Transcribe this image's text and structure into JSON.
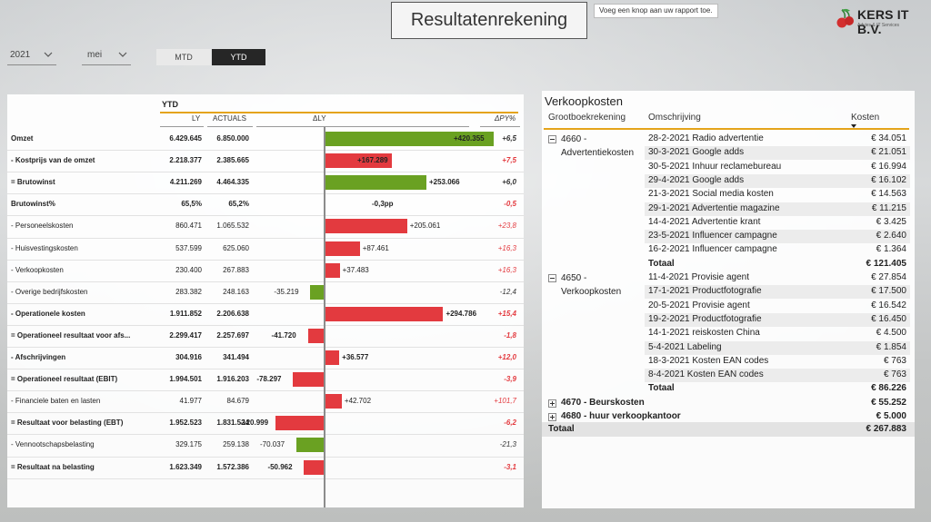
{
  "report": {
    "title": "Resultatenrekening",
    "tooltip": "Voeg een knop aan uw rapport toe.",
    "logo": {
      "name": "KERS IT B.V.",
      "tagline": "Advies & IT Services"
    }
  },
  "filters": {
    "year": "2021",
    "month": "mei",
    "period_toggle": {
      "options": [
        "MTD",
        "YTD"
      ],
      "selected": "YTD"
    }
  },
  "colors": {
    "accent": "#e4a41b",
    "positive": "#6aa122",
    "negative": "#e33a3f",
    "selected_toggle": "#262626"
  },
  "income_statement": {
    "section_title": "YTD",
    "columns": {
      "ly": "LY",
      "actuals": "ACTUALS",
      "delta_ly": "ΔLY",
      "delta_py_pct": "ΔPY%"
    },
    "rows": [
      {
        "label": "Omzet",
        "ly": "6.429.645",
        "actuals": "6.850.000",
        "delta_label": "+420.355",
        "delta": 420355,
        "py": "+6,5",
        "bold": true,
        "good": true
      },
      {
        "label": "- Kostprijs van de omzet",
        "ly": "2.218.377",
        "actuals": "2.385.665",
        "delta_label": "+167.289",
        "delta": 167289,
        "py": "+7,5",
        "bold": true,
        "good": false
      },
      {
        "label": "= Brutowinst",
        "ly": "4.211.269",
        "actuals": "4.464.335",
        "delta_label": "+253.066",
        "delta": 253066,
        "py": "+6,0",
        "bold": true,
        "good": true
      },
      {
        "label": "Brutowinst%",
        "ly": "65,5%",
        "actuals": "65,2%",
        "delta_label": "-0,3pp",
        "delta": 0,
        "py": "-0,5",
        "bold": true,
        "good": false
      },
      {
        "label": "- Personeelskosten",
        "ly": "860.471",
        "actuals": "1.065.532",
        "delta_label": "+205.061",
        "delta": 205061,
        "py": "+23,8",
        "bold": false,
        "good": false
      },
      {
        "label": "- Huisvestingskosten",
        "ly": "537.599",
        "actuals": "625.060",
        "delta_label": "+87.461",
        "delta": 87461,
        "py": "+16,3",
        "bold": false,
        "good": false
      },
      {
        "label": "- Verkoopkosten",
        "ly": "230.400",
        "actuals": "267.883",
        "delta_label": "+37.483",
        "delta": 37483,
        "py": "+16,3",
        "bold": false,
        "good": false
      },
      {
        "label": "- Overige bedrijfskosten",
        "ly": "283.382",
        "actuals": "248.163",
        "delta_label": "-35.219",
        "delta": -35219,
        "py": "-12,4",
        "bold": false,
        "good": true
      },
      {
        "label": "- Operationele kosten",
        "ly": "1.911.852",
        "actuals": "2.206.638",
        "delta_label": "+294.786",
        "delta": 294786,
        "py": "+15,4",
        "bold": true,
        "good": false
      },
      {
        "label": "= Operationeel resultaat voor afs...",
        "ly": "2.299.417",
        "actuals": "2.257.697",
        "delta_label": "-41.720",
        "delta": -41720,
        "py": "-1,8",
        "bold": true,
        "good": false
      },
      {
        "label": "- Afschrijvingen",
        "ly": "304.916",
        "actuals": "341.494",
        "delta_label": "+36.577",
        "delta": 36577,
        "py": "+12,0",
        "bold": true,
        "good": false
      },
      {
        "label": "= Operationeel resultaat (EBIT)",
        "ly": "1.994.501",
        "actuals": "1.916.203",
        "delta_label": "-78.297",
        "delta": -78297,
        "py": "-3,9",
        "bold": true,
        "good": false
      },
      {
        "label": "- Financiele baten en lasten",
        "ly": "41.977",
        "actuals": "84.679",
        "delta_label": "+42.702",
        "delta": 42702,
        "py": "+101,7",
        "bold": false,
        "good": false
      },
      {
        "label": "= Resultaat voor belasting (EBT)",
        "ly": "1.952.523",
        "actuals": "1.831.524",
        "delta_label": "-120.999",
        "delta": -120999,
        "py": "-6,2",
        "bold": true,
        "good": false
      },
      {
        "label": "- Vennootschapsbelasting",
        "ly": "329.175",
        "actuals": "259.138",
        "delta_label": "-70.037",
        "delta": -70037,
        "py": "-21,3",
        "bold": false,
        "good": true
      },
      {
        "label": "= Resultaat na belasting",
        "ly": "1.623.349",
        "actuals": "1.572.386",
        "delta_label": "-50.962",
        "delta": -50962,
        "py": "-3,1",
        "bold": true,
        "good": false
      }
    ]
  },
  "sales_costs": {
    "title": "Verkoopkosten",
    "columns": {
      "account": "Grootboekrekening",
      "description": "Omschrijving",
      "costs": "Kosten"
    },
    "groups": [
      {
        "name_line1": "4660 -",
        "name_line2": "Advertentiekosten",
        "expanded": true,
        "items": [
          {
            "desc": "28-2-2021 Radio advertentie",
            "cost": "€ 34.051"
          },
          {
            "desc": "30-3-2021 Google adds",
            "cost": "€ 21.051"
          },
          {
            "desc": "30-5-2021 Inhuur reclamebureau",
            "cost": "€ 16.994"
          },
          {
            "desc": "29-4-2021 Google adds",
            "cost": "€ 16.102"
          },
          {
            "desc": "21-3-2021 Social media kosten",
            "cost": "€ 14.563"
          },
          {
            "desc": "29-1-2021 Advertentie magazine",
            "cost": "€ 11.215"
          },
          {
            "desc": "14-4-2021 Advertentie krant",
            "cost": "€ 3.425"
          },
          {
            "desc": "23-5-2021 Influencer campagne",
            "cost": "€ 2.640"
          },
          {
            "desc": "16-2-2021 Influencer campagne",
            "cost": "€ 1.364"
          }
        ],
        "total_label": "Totaal",
        "total": "€ 121.405"
      },
      {
        "name_line1": "4650 -",
        "name_line2": "Verkoopkosten",
        "expanded": true,
        "items": [
          {
            "desc": "11-4-2021 Provisie agent",
            "cost": "€ 27.854"
          },
          {
            "desc": "17-1-2021 Productfotografie",
            "cost": "€ 17.500"
          },
          {
            "desc": "20-5-2021 Provisie agent",
            "cost": "€ 16.542"
          },
          {
            "desc": "19-2-2021 Productfotografie",
            "cost": "€ 16.450"
          },
          {
            "desc": "14-1-2021 reiskosten China",
            "cost": "€ 4.500"
          },
          {
            "desc": "5-4-2021 Labeling",
            "cost": "€ 1.854"
          },
          {
            "desc": "18-3-2021 Kosten EAN codes",
            "cost": "€ 763"
          },
          {
            "desc": "8-4-2021 Kosten EAN codes",
            "cost": "€ 763"
          }
        ],
        "total_label": "Totaal",
        "total": "€ 86.226"
      }
    ],
    "collapsed": [
      {
        "name": "4670 - Beurskosten",
        "total": "€ 55.252"
      },
      {
        "name": "4680 - huur verkoopkantoor",
        "total": "€ 5.000"
      }
    ],
    "grand_total_label": "Totaal",
    "grand_total": "€ 267.883"
  }
}
